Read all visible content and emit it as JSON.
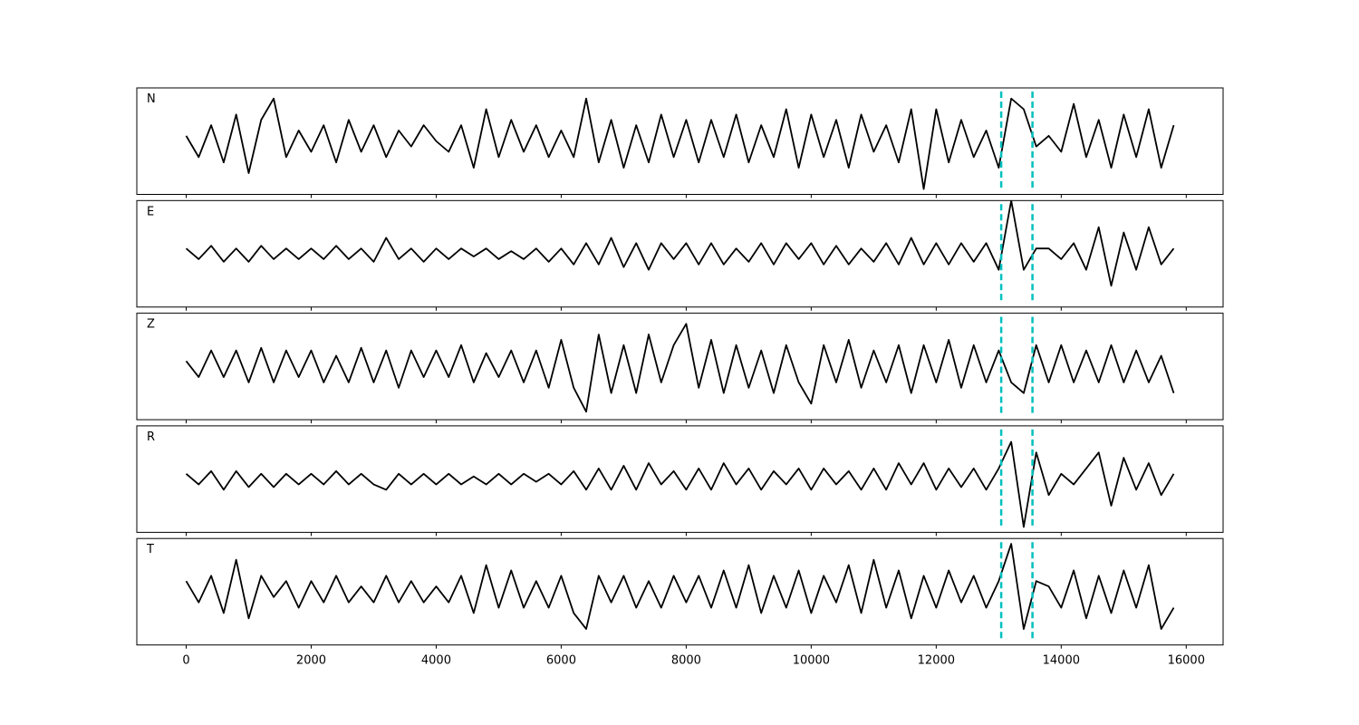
{
  "chart_data": {
    "type": "line",
    "x": [
      0,
      200,
      400,
      600,
      800,
      1000,
      1200,
      1400,
      1600,
      1800,
      2000,
      2200,
      2400,
      2600,
      2800,
      3000,
      3200,
      3400,
      3600,
      3800,
      4000,
      4200,
      4400,
      4600,
      4800,
      5000,
      5200,
      5400,
      5600,
      5800,
      6000,
      6200,
      6400,
      6600,
      6800,
      7000,
      7200,
      7400,
      7600,
      7800,
      8000,
      8200,
      8400,
      8600,
      8800,
      9000,
      9200,
      9400,
      9600,
      9800,
      10000,
      10200,
      10400,
      10600,
      10800,
      11000,
      11200,
      11400,
      11600,
      11800,
      12000,
      12200,
      12400,
      12600,
      12800,
      13000,
      13200,
      13400,
      13600,
      13800,
      14000,
      14200,
      14400,
      14600,
      14800,
      15000,
      15200,
      15400,
      15600,
      15800
    ],
    "series": [
      {
        "name": "N",
        "color": "#000000",
        "values": [
          0.1,
          -0.3,
          0.3,
          -0.4,
          0.5,
          -0.6,
          0.4,
          0.8,
          -0.3,
          0.2,
          -0.2,
          0.3,
          -0.4,
          0.4,
          -0.2,
          0.3,
          -0.3,
          0.2,
          -0.1,
          0.3,
          0.0,
          -0.2,
          0.3,
          -0.5,
          0.6,
          -0.3,
          0.4,
          -0.2,
          0.3,
          -0.3,
          0.2,
          -0.3,
          0.8,
          -0.4,
          0.4,
          -0.5,
          0.3,
          -0.4,
          0.5,
          -0.3,
          0.4,
          -0.4,
          0.4,
          -0.3,
          0.5,
          -0.4,
          0.3,
          -0.3,
          0.6,
          -0.5,
          0.5,
          -0.3,
          0.4,
          -0.5,
          0.5,
          -0.2,
          0.3,
          -0.4,
          0.6,
          -0.9,
          0.6,
          -0.4,
          0.4,
          -0.3,
          0.2,
          -0.5,
          0.8,
          0.6,
          -0.1,
          0.1,
          -0.2,
          0.7,
          -0.3,
          0.4,
          -0.5,
          0.5,
          -0.3,
          0.6,
          -0.5,
          0.3
        ]
      },
      {
        "name": "E",
        "color": "#000000",
        "values": [
          0.1,
          -0.1,
          0.15,
          -0.15,
          0.1,
          -0.15,
          0.15,
          -0.1,
          0.1,
          -0.1,
          0.1,
          -0.1,
          0.15,
          -0.1,
          0.1,
          -0.15,
          0.3,
          -0.1,
          0.1,
          -0.15,
          0.1,
          -0.1,
          0.1,
          -0.05,
          0.1,
          -0.1,
          0.05,
          -0.1,
          0.1,
          -0.15,
          0.1,
          -0.2,
          0.2,
          -0.2,
          0.3,
          -0.25,
          0.2,
          -0.3,
          0.2,
          -0.1,
          0.2,
          -0.2,
          0.2,
          -0.2,
          0.1,
          -0.15,
          0.2,
          -0.2,
          0.2,
          -0.1,
          0.2,
          -0.2,
          0.15,
          -0.2,
          0.1,
          -0.15,
          0.2,
          -0.2,
          0.3,
          -0.2,
          0.2,
          -0.2,
          0.2,
          -0.15,
          0.2,
          -0.3,
          1.0,
          -0.3,
          0.1,
          0.1,
          -0.1,
          0.2,
          -0.3,
          0.5,
          -0.6,
          0.4,
          -0.3,
          0.5,
          -0.2,
          0.1
        ]
      },
      {
        "name": "Z",
        "color": "#000000",
        "values": [
          0.1,
          -0.2,
          0.3,
          -0.2,
          0.3,
          -0.3,
          0.35,
          -0.3,
          0.3,
          -0.2,
          0.3,
          -0.3,
          0.2,
          -0.3,
          0.35,
          -0.3,
          0.3,
          -0.4,
          0.3,
          -0.2,
          0.3,
          -0.2,
          0.4,
          -0.3,
          0.25,
          -0.2,
          0.3,
          -0.3,
          0.3,
          -0.4,
          0.5,
          -0.4,
          -0.85,
          0.6,
          -0.5,
          0.4,
          -0.5,
          0.6,
          -0.3,
          0.4,
          0.8,
          -0.4,
          0.5,
          -0.5,
          0.4,
          -0.4,
          0.3,
          -0.5,
          0.4,
          -0.3,
          -0.7,
          0.4,
          -0.3,
          0.5,
          -0.4,
          0.3,
          -0.3,
          0.4,
          -0.5,
          0.4,
          -0.3,
          0.5,
          -0.4,
          0.4,
          -0.3,
          0.3,
          -0.3,
          -0.5,
          0.4,
          -0.3,
          0.4,
          -0.3,
          0.3,
          -0.3,
          0.4,
          -0.3,
          0.3,
          -0.3,
          0.2,
          -0.5
        ]
      },
      {
        "name": "R",
        "color": "#000000",
        "values": [
          0.1,
          -0.1,
          0.15,
          -0.2,
          0.15,
          -0.15,
          0.1,
          -0.15,
          0.1,
          -0.1,
          0.1,
          -0.1,
          0.15,
          -0.1,
          0.1,
          -0.1,
          -0.2,
          0.1,
          -0.1,
          0.1,
          -0.1,
          0.1,
          -0.1,
          0.05,
          -0.1,
          0.1,
          -0.1,
          0.1,
          -0.05,
          0.1,
          -0.1,
          0.15,
          -0.2,
          0.2,
          -0.2,
          0.25,
          -0.2,
          0.3,
          -0.1,
          0.15,
          -0.2,
          0.2,
          -0.2,
          0.3,
          -0.1,
          0.2,
          -0.2,
          0.15,
          -0.1,
          0.2,
          -0.2,
          0.2,
          -0.1,
          0.15,
          -0.2,
          0.2,
          -0.2,
          0.3,
          -0.1,
          0.3,
          -0.2,
          0.2,
          -0.15,
          0.2,
          -0.2,
          0.2,
          0.7,
          -0.9,
          0.5,
          -0.3,
          0.1,
          -0.1,
          0.2,
          0.5,
          -0.5,
          0.4,
          -0.2,
          0.3,
          -0.3,
          0.1
        ]
      },
      {
        "name": "T",
        "color": "#000000",
        "values": [
          0.2,
          -0.2,
          0.3,
          -0.4,
          0.6,
          -0.5,
          0.3,
          -0.1,
          0.2,
          -0.3,
          0.2,
          -0.2,
          0.3,
          -0.2,
          0.1,
          -0.2,
          0.3,
          -0.2,
          0.2,
          -0.2,
          0.1,
          -0.2,
          0.3,
          -0.4,
          0.5,
          -0.3,
          0.4,
          -0.3,
          0.2,
          -0.3,
          0.3,
          -0.4,
          -0.7,
          0.3,
          -0.2,
          0.3,
          -0.3,
          0.2,
          -0.3,
          0.3,
          -0.2,
          0.3,
          -0.3,
          0.4,
          -0.3,
          0.5,
          -0.4,
          0.3,
          -0.3,
          0.4,
          -0.4,
          0.3,
          -0.2,
          0.5,
          -0.4,
          0.6,
          -0.3,
          0.4,
          -0.5,
          0.3,
          -0.3,
          0.4,
          -0.2,
          0.3,
          -0.3,
          0.2,
          0.9,
          -0.7,
          0.2,
          0.1,
          -0.3,
          0.4,
          -0.5,
          0.3,
          -0.4,
          0.4,
          -0.3,
          0.5,
          -0.7,
          -0.3
        ]
      }
    ],
    "xlim": [
      -790,
      16590
    ],
    "xticks": [
      0,
      2000,
      4000,
      6000,
      8000,
      10000,
      12000,
      14000,
      16000
    ],
    "ylim": [
      -1,
      1
    ],
    "vlines": [
      13040,
      13540
    ],
    "vline_color": "#00bfbf"
  }
}
